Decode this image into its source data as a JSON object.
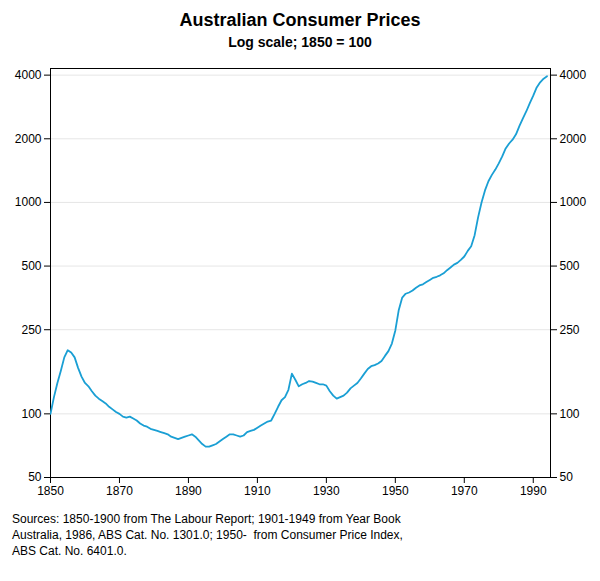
{
  "chart_data": {
    "type": "line",
    "title": "Australian Consumer Prices",
    "subtitle": "Log scale; 1850 = 100",
    "x": [
      1850,
      1851,
      1852,
      1853,
      1854,
      1855,
      1856,
      1857,
      1858,
      1859,
      1860,
      1861,
      1862,
      1863,
      1864,
      1865,
      1866,
      1867,
      1868,
      1869,
      1870,
      1871,
      1872,
      1873,
      1874,
      1875,
      1876,
      1877,
      1878,
      1879,
      1880,
      1881,
      1882,
      1883,
      1884,
      1885,
      1886,
      1887,
      1888,
      1889,
      1890,
      1891,
      1892,
      1893,
      1894,
      1895,
      1896,
      1897,
      1898,
      1899,
      1900,
      1901,
      1902,
      1903,
      1904,
      1905,
      1906,
      1907,
      1908,
      1909,
      1910,
      1911,
      1912,
      1913,
      1914,
      1915,
      1916,
      1917,
      1918,
      1919,
      1920,
      1921,
      1922,
      1923,
      1924,
      1925,
      1926,
      1927,
      1928,
      1929,
      1930,
      1931,
      1932,
      1933,
      1934,
      1935,
      1936,
      1937,
      1938,
      1939,
      1940,
      1941,
      1942,
      1943,
      1944,
      1945,
      1946,
      1947,
      1948,
      1949,
      1950,
      1951,
      1952,
      1953,
      1954,
      1955,
      1956,
      1957,
      1958,
      1959,
      1960,
      1961,
      1962,
      1963,
      1964,
      1965,
      1966,
      1967,
      1968,
      1969,
      1970,
      1971,
      1972,
      1973,
      1974,
      1975,
      1976,
      1977,
      1978,
      1979,
      1980,
      1981,
      1982,
      1983,
      1984,
      1985,
      1986,
      1987,
      1988,
      1989,
      1990,
      1991,
      1992,
      1993,
      1994
    ],
    "values": [
      100,
      120,
      140,
      160,
      185,
      200,
      195,
      185,
      165,
      150,
      140,
      135,
      128,
      122,
      118,
      115,
      112,
      108,
      105,
      102,
      100,
      97,
      96,
      97,
      95,
      93,
      90,
      88,
      87,
      85,
      84,
      83,
      82,
      81,
      80,
      78,
      77,
      76,
      77,
      78,
      79,
      80,
      78,
      75,
      72,
      70,
      70,
      71,
      72,
      74,
      76,
      78,
      80,
      80,
      79,
      78,
      79,
      82,
      83,
      84,
      86,
      88,
      90,
      92,
      93,
      100,
      108,
      116,
      120,
      130,
      155,
      145,
      135,
      138,
      140,
      143,
      142,
      140,
      138,
      138,
      136,
      128,
      122,
      118,
      120,
      122,
      126,
      132,
      136,
      140,
      147,
      155,
      163,
      168,
      170,
      173,
      178,
      188,
      198,
      215,
      248,
      310,
      355,
      370,
      375,
      383,
      395,
      405,
      410,
      420,
      430,
      440,
      445,
      452,
      462,
      478,
      492,
      508,
      518,
      535,
      555,
      590,
      620,
      700,
      850,
      1000,
      1140,
      1260,
      1350,
      1430,
      1530,
      1650,
      1800,
      1900,
      1980,
      2100,
      2300,
      2500,
      2700,
      2950,
      3200,
      3500,
      3700,
      3850,
      3950
    ],
    "color": "#1a9fd4",
    "log": "y",
    "xlim": [
      1850,
      1995
    ],
    "xticks": [
      1850,
      1870,
      1890,
      1910,
      1930,
      1950,
      1970,
      1990
    ],
    "ylim": [
      50,
      4300
    ],
    "yticks": [
      50,
      100,
      250,
      500,
      1000,
      2000,
      4000
    ],
    "y2lim": [
      50,
      4300
    ],
    "y2ticks": [
      50,
      100,
      250,
      500,
      1000,
      2000,
      4000
    ],
    "grid": true,
    "annotations": [
      "Sources: 1850-1900 from The Labour Report; 1901-1949 from Year Book",
      "Australia, 1986, ABS Cat. No. 1301.0; 1950-  from Consumer Price Index,",
      "ABS Cat. No. 6401.0."
    ]
  }
}
